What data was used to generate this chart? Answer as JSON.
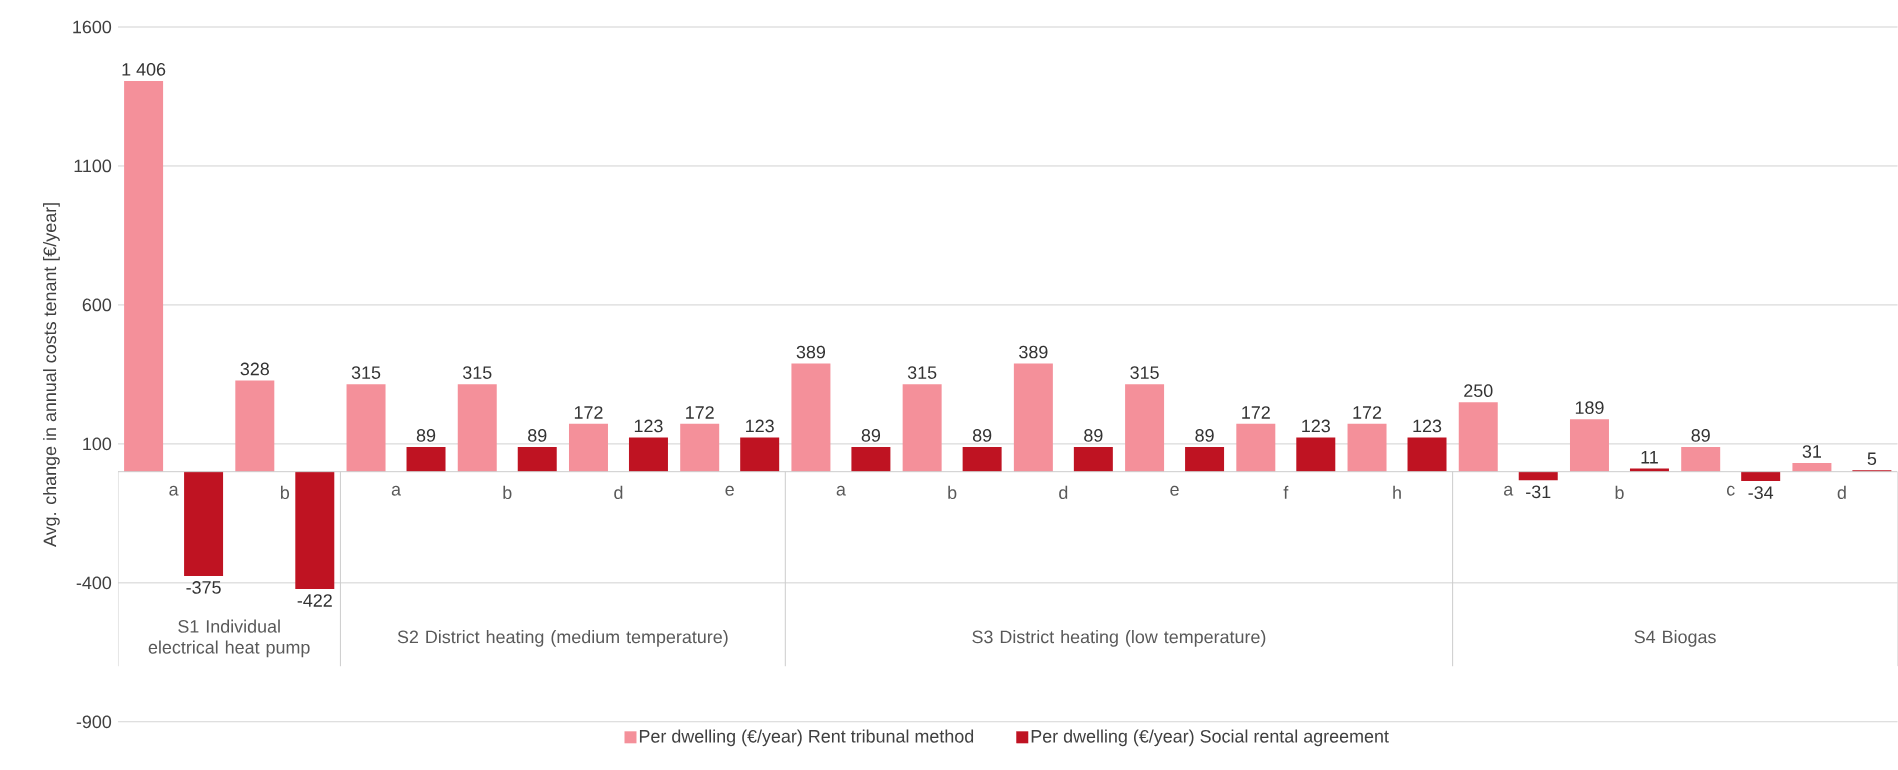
{
  "chart_data": {
    "type": "bar",
    "ylabel": "Avg. change in annual costs tenant [€/year]",
    "categories": [
      "a",
      "b",
      "a",
      "b",
      "d",
      "e",
      "a",
      "b",
      "d",
      "e",
      "f",
      "h",
      "a",
      "b",
      "c",
      "d"
    ],
    "series": [
      {
        "name": "Per dwelling (€/year) Rent tribunal method",
        "color": "#f4909a",
        "values": [
          1406,
          328,
          315,
          315,
          172,
          172,
          389,
          315,
          389,
          315,
          172,
          172,
          250,
          189,
          89,
          31
        ],
        "value_labels": [
          "1 406",
          "328",
          "315",
          "315",
          "172",
          "172",
          "389",
          "315",
          "389",
          "315",
          "172",
          "172",
          "250",
          "189",
          "89",
          "31"
        ]
      },
      {
        "name": "Per dwelling (€/year) Social rental agreement",
        "color": "#bf1322",
        "values": [
          -375,
          -422,
          89,
          89,
          123,
          123,
          89,
          89,
          89,
          89,
          123,
          123,
          -31,
          11,
          -34,
          5
        ],
        "value_labels": [
          "-375",
          "-422",
          "89",
          "89",
          "123",
          "123",
          "89",
          "89",
          "89",
          "89",
          "123",
          "123",
          "-31",
          "11",
          "-34",
          "5"
        ]
      }
    ],
    "annotations": [
      "S1 Individual electrical heat pump",
      "S2 District heating (medium temperature)",
      "S3 District heating (low temperature)",
      "S4 Biogas"
    ],
    "ylim": [
      -900,
      1600
    ],
    "yticks": [
      -900,
      -400,
      100,
      600,
      1100,
      1600
    ],
    "grid": "y",
    "legend": "bottom"
  }
}
